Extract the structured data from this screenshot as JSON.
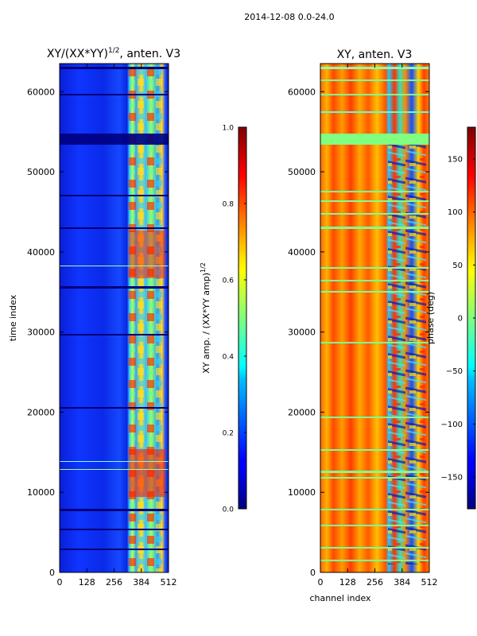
{
  "suptitle": "2014-12-08 0.0-24.0",
  "chart_data": [
    {
      "type": "heatmap",
      "title": "XY/(XX*YY)",
      "title_sup": "1/2",
      "title_suffix": ", anten. V3",
      "xlabel": "",
      "ylabel": "time index",
      "xlim": [
        0,
        512
      ],
      "ylim": [
        0,
        63500
      ],
      "xticks": [
        0,
        128,
        256,
        384,
        512
      ],
      "xtick_labels": [
        "0",
        "128",
        "256",
        "384",
        "512"
      ],
      "yticks": [
        0,
        10000,
        20000,
        30000,
        40000,
        50000,
        60000
      ],
      "ytick_labels": [
        "0",
        "10000",
        "20000",
        "30000",
        "40000",
        "50000",
        "60000"
      ],
      "colormap": "jet",
      "colorbar": {
        "label": "XY amp. / (XX*YY amp)",
        "label_sup": "1/2",
        "range": [
          0.0,
          1.0
        ],
        "ticks": [
          0.0,
          0.2,
          0.4,
          0.6,
          0.8,
          1.0
        ],
        "tick_labels": [
          "0.0",
          "0.2",
          "0.4",
          "0.6",
          "0.8",
          "1.0"
        ]
      }
    },
    {
      "type": "heatmap",
      "title": "XY, anten. V3",
      "xlabel": "channel index",
      "ylabel": "",
      "xlim": [
        0,
        512
      ],
      "ylim": [
        0,
        63500
      ],
      "xticks": [
        0,
        128,
        256,
        384,
        512
      ],
      "xtick_labels": [
        "0",
        "128",
        "256",
        "384",
        "512"
      ],
      "yticks": [
        0,
        10000,
        20000,
        30000,
        40000,
        50000,
        60000
      ],
      "ytick_labels": [
        "0",
        "10000",
        "20000",
        "30000",
        "40000",
        "50000",
        "60000"
      ],
      "colormap": "jet",
      "colorbar": {
        "label": "phase (deg)",
        "range": [
          -180,
          180
        ],
        "ticks": [
          150,
          100,
          50,
          0,
          -50,
          -100,
          -150
        ],
        "tick_labels": [
          "150",
          "100",
          "50",
          "0",
          "−50",
          "−100",
          "−150"
        ]
      }
    }
  ]
}
